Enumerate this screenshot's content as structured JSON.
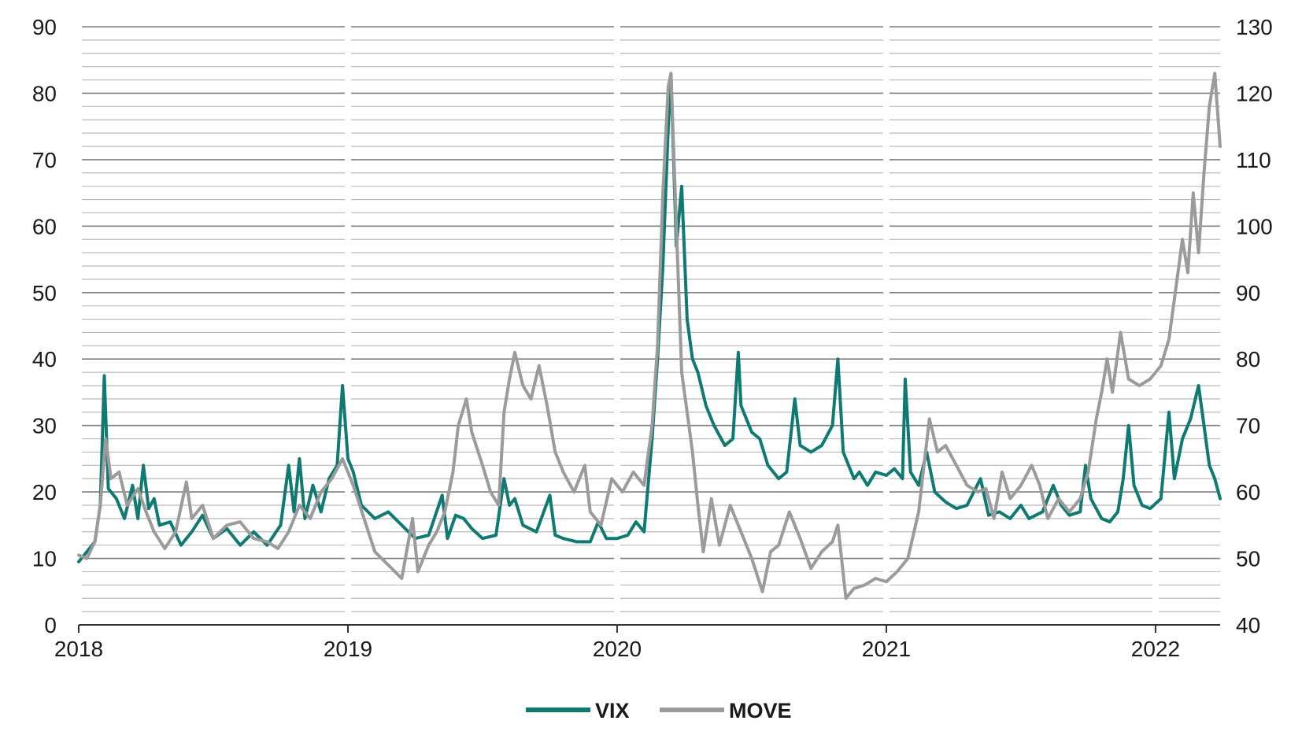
{
  "chart_data": {
    "type": "line",
    "title": "",
    "xlabel": "",
    "ylabel": "",
    "x_ticks": [
      "2018",
      "2019",
      "2020",
      "2021",
      "2022"
    ],
    "x_range": [
      2018.0,
      2022.24
    ],
    "y_left": {
      "ticks": [
        0,
        10,
        20,
        30,
        40,
        50,
        60,
        70,
        80,
        90
      ],
      "range": [
        0,
        90
      ]
    },
    "y_right": {
      "ticks": [
        40,
        50,
        60,
        70,
        80,
        90,
        100,
        110,
        120,
        130
      ],
      "range": [
        40,
        130
      ]
    },
    "grid": true,
    "legend_position": "bottom-center",
    "series": [
      {
        "name": "VIX",
        "axis": "left",
        "color": "#0e7a71",
        "points": [
          [
            2018.0,
            9.5
          ],
          [
            2018.03,
            11.0
          ],
          [
            2018.06,
            12.5
          ],
          [
            2018.08,
            18.0
          ],
          [
            2018.095,
            37.5
          ],
          [
            2018.11,
            20.5
          ],
          [
            2018.14,
            19.0
          ],
          [
            2018.17,
            16.0
          ],
          [
            2018.2,
            21.0
          ],
          [
            2018.22,
            16.0
          ],
          [
            2018.24,
            24.0
          ],
          [
            2018.26,
            17.5
          ],
          [
            2018.28,
            19.0
          ],
          [
            2018.3,
            15.0
          ],
          [
            2018.34,
            15.5
          ],
          [
            2018.38,
            12.0
          ],
          [
            2018.42,
            14.0
          ],
          [
            2018.46,
            16.5
          ],
          [
            2018.5,
            13.0
          ],
          [
            2018.55,
            14.5
          ],
          [
            2018.6,
            12.0
          ],
          [
            2018.65,
            14.0
          ],
          [
            2018.7,
            12.0
          ],
          [
            2018.75,
            15.0
          ],
          [
            2018.78,
            24.0
          ],
          [
            2018.8,
            17.0
          ],
          [
            2018.82,
            25.0
          ],
          [
            2018.84,
            16.0
          ],
          [
            2018.87,
            21.0
          ],
          [
            2018.9,
            17.0
          ],
          [
            2018.93,
            22.0
          ],
          [
            2018.96,
            24.0
          ],
          [
            2018.98,
            36.0
          ],
          [
            2019.0,
            25.0
          ],
          [
            2019.02,
            23.0
          ],
          [
            2019.05,
            18.0
          ],
          [
            2019.1,
            16.0
          ],
          [
            2019.15,
            17.0
          ],
          [
            2019.2,
            15.0
          ],
          [
            2019.25,
            13.0
          ],
          [
            2019.3,
            13.5
          ],
          [
            2019.35,
            19.5
          ],
          [
            2019.37,
            13.0
          ],
          [
            2019.4,
            16.5
          ],
          [
            2019.43,
            16.0
          ],
          [
            2019.46,
            14.5
          ],
          [
            2019.5,
            13.0
          ],
          [
            2019.55,
            13.5
          ],
          [
            2019.58,
            22.0
          ],
          [
            2019.6,
            18.0
          ],
          [
            2019.62,
            19.0
          ],
          [
            2019.65,
            15.0
          ],
          [
            2019.7,
            14.0
          ],
          [
            2019.75,
            19.5
          ],
          [
            2019.77,
            13.5
          ],
          [
            2019.8,
            13.0
          ],
          [
            2019.85,
            12.5
          ],
          [
            2019.9,
            12.5
          ],
          [
            2019.93,
            15.5
          ],
          [
            2019.96,
            13.0
          ],
          [
            2020.0,
            13.0
          ],
          [
            2020.04,
            13.5
          ],
          [
            2020.07,
            15.5
          ],
          [
            2020.1,
            14.0
          ],
          [
            2020.13,
            28.0
          ],
          [
            2020.15,
            40.0
          ],
          [
            2020.17,
            54.0
          ],
          [
            2020.19,
            75.0
          ],
          [
            2020.2,
            82.5
          ],
          [
            2020.22,
            57.0
          ],
          [
            2020.24,
            66.0
          ],
          [
            2020.26,
            46.0
          ],
          [
            2020.28,
            40.0
          ],
          [
            2020.3,
            38.0
          ],
          [
            2020.33,
            33.0
          ],
          [
            2020.36,
            30.0
          ],
          [
            2020.4,
            27.0
          ],
          [
            2020.43,
            28.0
          ],
          [
            2020.45,
            41.0
          ],
          [
            2020.46,
            33.0
          ],
          [
            2020.5,
            29.0
          ],
          [
            2020.53,
            28.0
          ],
          [
            2020.56,
            24.0
          ],
          [
            2020.6,
            22.0
          ],
          [
            2020.63,
            23.0
          ],
          [
            2020.66,
            34.0
          ],
          [
            2020.68,
            27.0
          ],
          [
            2020.72,
            26.0
          ],
          [
            2020.76,
            27.0
          ],
          [
            2020.8,
            30.0
          ],
          [
            2020.82,
            40.0
          ],
          [
            2020.84,
            26.0
          ],
          [
            2020.88,
            22.0
          ],
          [
            2020.9,
            23.0
          ],
          [
            2020.93,
            21.0
          ],
          [
            2020.96,
            23.0
          ],
          [
            2021.0,
            22.5
          ],
          [
            2021.03,
            23.5
          ],
          [
            2021.06,
            22.0
          ],
          [
            2021.07,
            37.0
          ],
          [
            2021.09,
            23.0
          ],
          [
            2021.12,
            21.0
          ],
          [
            2021.15,
            26.0
          ],
          [
            2021.18,
            20.0
          ],
          [
            2021.22,
            18.5
          ],
          [
            2021.26,
            17.5
          ],
          [
            2021.3,
            18.0
          ],
          [
            2021.35,
            22.0
          ],
          [
            2021.38,
            16.5
          ],
          [
            2021.42,
            17.0
          ],
          [
            2021.46,
            16.0
          ],
          [
            2021.5,
            18.0
          ],
          [
            2021.53,
            16.0
          ],
          [
            2021.58,
            17.0
          ],
          [
            2021.62,
            21.0
          ],
          [
            2021.65,
            18.0
          ],
          [
            2021.68,
            16.5
          ],
          [
            2021.72,
            17.0
          ],
          [
            2021.74,
            24.0
          ],
          [
            2021.76,
            19.0
          ],
          [
            2021.8,
            16.0
          ],
          [
            2021.83,
            15.5
          ],
          [
            2021.86,
            17.0
          ],
          [
            2021.88,
            22.0
          ],
          [
            2021.9,
            30.0
          ],
          [
            2021.92,
            21.0
          ],
          [
            2021.95,
            18.0
          ],
          [
            2021.98,
            17.5
          ],
          [
            2022.02,
            19.0
          ],
          [
            2022.05,
            32.0
          ],
          [
            2022.07,
            22.0
          ],
          [
            2022.1,
            28.0
          ],
          [
            2022.13,
            31.0
          ],
          [
            2022.16,
            36.0
          ],
          [
            2022.18,
            30.0
          ],
          [
            2022.2,
            24.0
          ],
          [
            2022.22,
            22.0
          ],
          [
            2022.24,
            19.0
          ]
        ]
      },
      {
        "name": "MOVE",
        "axis": "right",
        "color": "#9b9b9b",
        "points": [
          [
            2018.0,
            50.5
          ],
          [
            2018.03,
            50.0
          ],
          [
            2018.06,
            52.5
          ],
          [
            2018.08,
            58.0
          ],
          [
            2018.1,
            68.0
          ],
          [
            2018.12,
            62.0
          ],
          [
            2018.15,
            63.0
          ],
          [
            2018.18,
            58.0
          ],
          [
            2018.22,
            60.5
          ],
          [
            2018.25,
            57.0
          ],
          [
            2018.28,
            54.0
          ],
          [
            2018.32,
            51.5
          ],
          [
            2018.36,
            54.0
          ],
          [
            2018.4,
            61.5
          ],
          [
            2018.42,
            56.0
          ],
          [
            2018.46,
            58.0
          ],
          [
            2018.5,
            53.0
          ],
          [
            2018.55,
            55.0
          ],
          [
            2018.6,
            55.5
          ],
          [
            2018.65,
            53.0
          ],
          [
            2018.7,
            52.5
          ],
          [
            2018.74,
            51.5
          ],
          [
            2018.78,
            54.0
          ],
          [
            2018.82,
            58.0
          ],
          [
            2018.86,
            56.0
          ],
          [
            2018.9,
            60.0
          ],
          [
            2018.94,
            62.0
          ],
          [
            2018.98,
            65.0
          ],
          [
            2019.02,
            61.0
          ],
          [
            2019.06,
            56.0
          ],
          [
            2019.1,
            51.0
          ],
          [
            2019.15,
            49.0
          ],
          [
            2019.2,
            47.0
          ],
          [
            2019.24,
            56.0
          ],
          [
            2019.26,
            48.0
          ],
          [
            2019.3,
            52.0
          ],
          [
            2019.33,
            54.0
          ],
          [
            2019.36,
            57.0
          ],
          [
            2019.39,
            63.0
          ],
          [
            2019.41,
            70.0
          ],
          [
            2019.44,
            74.0
          ],
          [
            2019.46,
            69.0
          ],
          [
            2019.5,
            64.0
          ],
          [
            2019.53,
            60.0
          ],
          [
            2019.56,
            58.0
          ],
          [
            2019.58,
            72.0
          ],
          [
            2019.6,
            77.0
          ],
          [
            2019.62,
            81.0
          ],
          [
            2019.65,
            76.0
          ],
          [
            2019.68,
            74.0
          ],
          [
            2019.71,
            79.0
          ],
          [
            2019.74,
            73.0
          ],
          [
            2019.77,
            66.0
          ],
          [
            2019.8,
            63.0
          ],
          [
            2019.84,
            60.0
          ],
          [
            2019.88,
            64.0
          ],
          [
            2019.9,
            57.0
          ],
          [
            2019.94,
            55.0
          ],
          [
            2019.98,
            62.0
          ],
          [
            2020.02,
            60.0
          ],
          [
            2020.06,
            63.0
          ],
          [
            2020.1,
            61.0
          ],
          [
            2020.13,
            70.0
          ],
          [
            2020.15,
            82.0
          ],
          [
            2020.17,
            105.0
          ],
          [
            2020.19,
            121.0
          ],
          [
            2020.2,
            123.0
          ],
          [
            2020.22,
            100.0
          ],
          [
            2020.24,
            78.0
          ],
          [
            2020.26,
            72.0
          ],
          [
            2020.28,
            66.0
          ],
          [
            2020.3,
            58.0
          ],
          [
            2020.32,
            51.0
          ],
          [
            2020.35,
            59.0
          ],
          [
            2020.38,
            52.0
          ],
          [
            2020.42,
            58.0
          ],
          [
            2020.46,
            54.0
          ],
          [
            2020.5,
            50.0
          ],
          [
            2020.54,
            45.0
          ],
          [
            2020.57,
            51.0
          ],
          [
            2020.6,
            52.0
          ],
          [
            2020.64,
            57.0
          ],
          [
            2020.68,
            53.0
          ],
          [
            2020.72,
            48.5
          ],
          [
            2020.76,
            51.0
          ],
          [
            2020.8,
            52.5
          ],
          [
            2020.82,
            55.0
          ],
          [
            2020.85,
            44.0
          ],
          [
            2020.88,
            45.5
          ],
          [
            2020.92,
            46.0
          ],
          [
            2020.96,
            47.0
          ],
          [
            2021.0,
            46.5
          ],
          [
            2021.04,
            48.0
          ],
          [
            2021.08,
            50.0
          ],
          [
            2021.12,
            57.0
          ],
          [
            2021.14,
            64.0
          ],
          [
            2021.16,
            71.0
          ],
          [
            2021.19,
            66.0
          ],
          [
            2021.22,
            67.0
          ],
          [
            2021.26,
            64.0
          ],
          [
            2021.3,
            61.0
          ],
          [
            2021.34,
            60.0
          ],
          [
            2021.37,
            60.5
          ],
          [
            2021.4,
            56.0
          ],
          [
            2021.43,
            63.0
          ],
          [
            2021.46,
            59.0
          ],
          [
            2021.5,
            61.0
          ],
          [
            2021.54,
            64.0
          ],
          [
            2021.57,
            61.0
          ],
          [
            2021.6,
            56.0
          ],
          [
            2021.64,
            59.0
          ],
          [
            2021.68,
            57.0
          ],
          [
            2021.72,
            59.0
          ],
          [
            2021.75,
            63.0
          ],
          [
            2021.78,
            71.0
          ],
          [
            2021.8,
            75.0
          ],
          [
            2021.82,
            80.0
          ],
          [
            2021.84,
            75.0
          ],
          [
            2021.87,
            84.0
          ],
          [
            2021.9,
            77.0
          ],
          [
            2021.94,
            76.0
          ],
          [
            2021.98,
            77.0
          ],
          [
            2022.02,
            79.0
          ],
          [
            2022.05,
            83.0
          ],
          [
            2022.08,
            92.0
          ],
          [
            2022.1,
            98.0
          ],
          [
            2022.12,
            93.0
          ],
          [
            2022.14,
            105.0
          ],
          [
            2022.16,
            96.0
          ],
          [
            2022.18,
            108.0
          ],
          [
            2022.2,
            118.0
          ],
          [
            2022.22,
            123.0
          ],
          [
            2022.24,
            112.0
          ]
        ]
      }
    ]
  }
}
